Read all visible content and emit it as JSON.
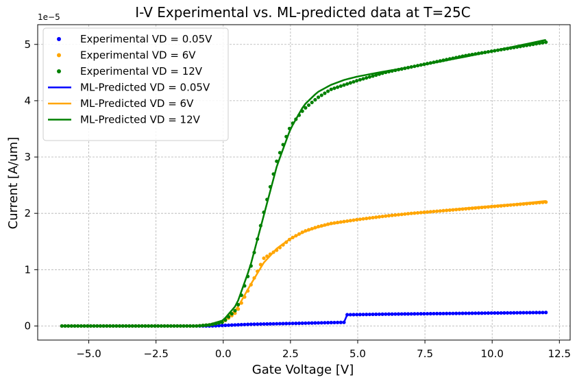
{
  "chart_data": {
    "type": "scatter",
    "title": "I-V Experimental vs. ML-predicted data at T=25C",
    "xlabel": "Gate Voltage [V]",
    "ylabel": "Current [A/um]",
    "y_offset_label": "1e−5",
    "xlim": [
      -6.9,
      12.9
    ],
    "ylim": [
      -0.25,
      5.35
    ],
    "x_ticks": [
      -5.0,
      -2.5,
      0.0,
      2.5,
      5.0,
      7.5,
      10.0,
      12.5
    ],
    "x_tick_labels": [
      "−5.0",
      "−2.5",
      "0.0",
      "2.5",
      "5.0",
      "7.5",
      "10.0",
      "12.5"
    ],
    "y_ticks": [
      0,
      1,
      2,
      3,
      4,
      5
    ],
    "y_tick_labels": [
      "0",
      "1",
      "2",
      "3",
      "4",
      "5"
    ],
    "grid": true,
    "legend_position": "top-left",
    "x_range": [
      -6,
      12
    ],
    "n_points": 152,
    "series": [
      {
        "name": "Experimental VD = 0.05V",
        "kind": "scatter",
        "color": "#0000ff",
        "x": [
          -6,
          -0.5,
          0,
          0.5,
          1,
          2,
          3,
          4,
          4.5,
          4.6,
          6,
          8,
          10,
          12
        ],
        "y": [
          0,
          0,
          0.01,
          0.02,
          0.03,
          0.04,
          0.05,
          0.06,
          0.065,
          0.2,
          0.21,
          0.22,
          0.23,
          0.24
        ]
      },
      {
        "name": "Experimental VD = 6V",
        "kind": "scatter",
        "color": "#ffa500",
        "x": [
          -6,
          -1,
          -0.5,
          0,
          0.5,
          1,
          1.5,
          2,
          2.5,
          3,
          3.5,
          4,
          5,
          6,
          7,
          8,
          9,
          10,
          11,
          12
        ],
        "y": [
          0,
          0,
          0.02,
          0.07,
          0.25,
          0.7,
          1.2,
          1.35,
          1.55,
          1.68,
          1.76,
          1.82,
          1.89,
          1.95,
          2.0,
          2.04,
          2.08,
          2.12,
          2.16,
          2.2
        ]
      },
      {
        "name": "Experimental VD = 12V",
        "kind": "scatter",
        "color": "#008000",
        "x": [
          -6,
          -1,
          -0.5,
          0,
          0.5,
          1,
          1.5,
          2,
          2.5,
          3,
          3.5,
          4,
          4.5,
          5,
          6,
          7,
          8,
          9,
          10,
          11,
          12
        ],
        "y": [
          0,
          0,
          0.02,
          0.07,
          0.3,
          1.0,
          2.0,
          2.95,
          3.55,
          3.85,
          4.05,
          4.2,
          4.28,
          4.36,
          4.5,
          4.6,
          4.7,
          4.8,
          4.88,
          4.96,
          5.04
        ]
      },
      {
        "name": "ML-Predicted VD = 0.05V",
        "kind": "line",
        "color": "#0000ff",
        "x": [
          -6,
          -0.5,
          0,
          0.5,
          1,
          2,
          3,
          4,
          4.5,
          4.6,
          6,
          8,
          10,
          12
        ],
        "y": [
          0,
          0,
          0.01,
          0.02,
          0.03,
          0.04,
          0.05,
          0.06,
          0.065,
          0.2,
          0.21,
          0.22,
          0.23,
          0.24
        ]
      },
      {
        "name": "ML-Predicted VD = 6V",
        "kind": "line",
        "color": "#ffa500",
        "x": [
          -6,
          -1,
          -0.5,
          0,
          0.5,
          1,
          1.5,
          2,
          2.5,
          3,
          3.5,
          4,
          5,
          6,
          7,
          8,
          9,
          10,
          11,
          12
        ],
        "y": [
          0,
          0,
          0.02,
          0.08,
          0.3,
          0.72,
          1.12,
          1.38,
          1.55,
          1.67,
          1.75,
          1.81,
          1.89,
          1.95,
          2.0,
          2.04,
          2.09,
          2.13,
          2.17,
          2.22
        ]
      },
      {
        "name": "ML-Predicted VD = 12V",
        "kind": "line",
        "color": "#008000",
        "x": [
          -6,
          -1,
          -0.5,
          0,
          0.5,
          1,
          1.5,
          2,
          2.5,
          3,
          3.5,
          4,
          4.5,
          5,
          6,
          7,
          8,
          9,
          10,
          11,
          12
        ],
        "y": [
          0,
          0,
          0.03,
          0.1,
          0.38,
          1.05,
          1.95,
          2.85,
          3.5,
          3.92,
          4.15,
          4.28,
          4.37,
          4.43,
          4.52,
          4.6,
          4.69,
          4.78,
          4.88,
          4.98,
          5.08
        ]
      }
    ]
  }
}
